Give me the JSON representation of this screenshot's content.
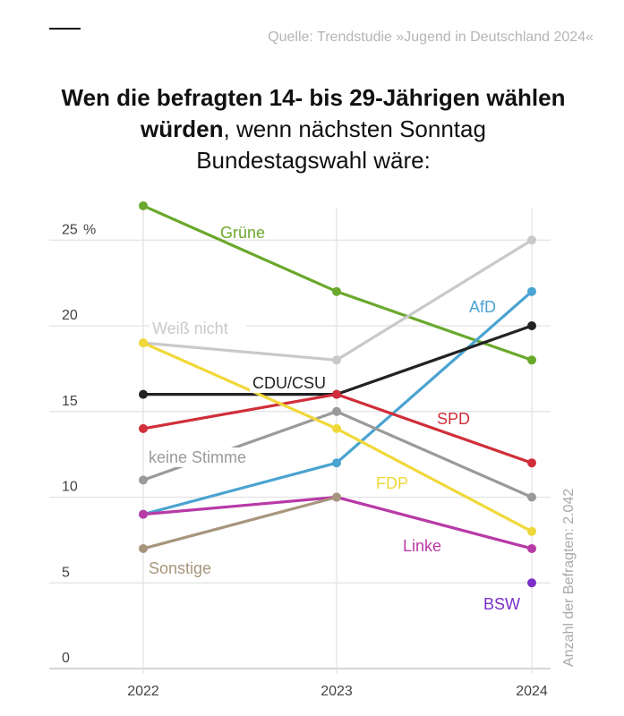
{
  "header": {
    "source": "Quelle: Trendstudie »Jugend in Deutschland 2024«"
  },
  "title": {
    "bold": "Wen die befragten 14- bis 29-Jährigen wählen würden",
    "rest_line2": ", wenn nächsten Sonntag",
    "line3": "Bundestagswahl wäre:"
  },
  "footnote": "Anzahl der Befragten: 2.042",
  "chart_data": {
    "type": "line",
    "x": [
      "2022",
      "2023",
      "2024"
    ],
    "ylim": [
      0,
      27
    ],
    "yticks": [
      0,
      5,
      10,
      15,
      20,
      25
    ],
    "yunit": "%",
    "grid": true,
    "series": [
      {
        "name": "Grüne",
        "color": "#6aa82c",
        "values": [
          27,
          22,
          18
        ]
      },
      {
        "name": "Weiß nicht",
        "color": "#c9c9c9",
        "values": [
          19,
          18,
          25
        ]
      },
      {
        "name": "AfD",
        "color": "#4aa3d1",
        "values": [
          9,
          12,
          22
        ]
      },
      {
        "name": "CDU/CSU",
        "color": "#222222",
        "values": [
          16,
          16,
          20
        ]
      },
      {
        "name": "SPD",
        "color": "#d02e3a",
        "values": [
          14,
          16,
          12
        ]
      },
      {
        "name": "keine Stimme",
        "color": "#9a9a9a",
        "values": [
          11,
          15,
          10
        ]
      },
      {
        "name": "FDP",
        "color": "#f0d83a",
        "values": [
          19,
          14,
          8
        ]
      },
      {
        "name": "Linke",
        "color": "#b83aa6",
        "values": [
          9,
          10,
          7
        ]
      },
      {
        "name": "Sonstige",
        "color": "#a8957d",
        "values": [
          7,
          10,
          null
        ]
      },
      {
        "name": "BSW",
        "color": "#7a2fc8",
        "values": [
          null,
          null,
          5
        ]
      }
    ]
  }
}
